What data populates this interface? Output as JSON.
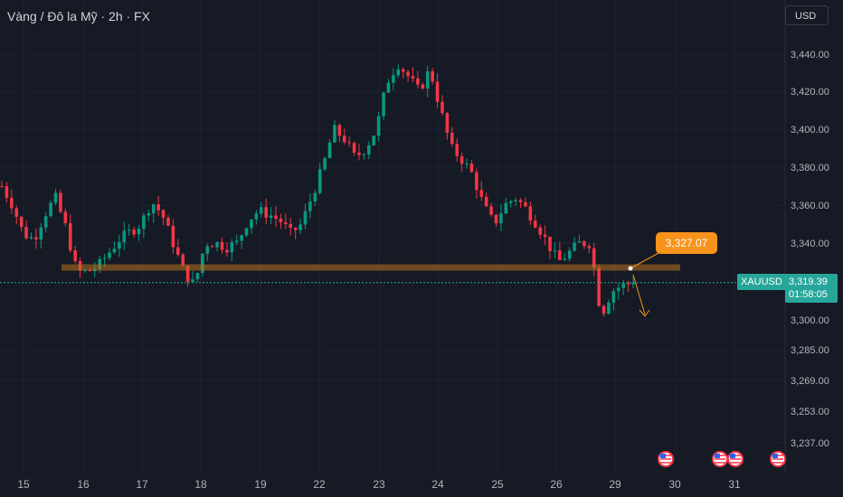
{
  "header": {
    "title": "Vàng / Đô la Mỹ · 2h · FX",
    "currency": "USD"
  },
  "ticker": {
    "symbol": "XAUUSD",
    "price": "3,319.39",
    "countdown": "01:58:05"
  },
  "annotation": {
    "price_label": "3,327.07",
    "level": 3327.07
  },
  "colors": {
    "background": "#161a25",
    "up": "#26a69a",
    "up_candle": "#089981",
    "down": "#f23645",
    "accent": "#f7931a",
    "level_band": "#b8731e"
  },
  "events": {
    "icon": "us-flag-icon",
    "positions": [
      "29",
      "31",
      "31",
      "31+"
    ]
  },
  "chart_data": {
    "type": "candlestick",
    "y_axis_labels": [
      "3,440.00",
      "3,420.00",
      "3,400.00",
      "3,380.00",
      "3,360.00",
      "3,340.00",
      "3,300.00",
      "3,285.00",
      "3,269.00",
      "3,253.00",
      "3,237.00"
    ],
    "x_axis_labels": [
      "15",
      "16",
      "17",
      "18",
      "19",
      "22",
      "23",
      "24",
      "25",
      "26",
      "29",
      "30",
      "31"
    ],
    "close_path": [
      3370,
      3360,
      3345,
      3342,
      3355,
      3364,
      3348,
      3325,
      3325,
      3328,
      3335,
      3342,
      3346,
      3350,
      3362,
      3355,
      3340,
      3325,
      3318,
      3340,
      3340,
      3338,
      3340,
      3352,
      3357,
      3355,
      3352,
      3345,
      3350,
      3365,
      3380,
      3400,
      3395,
      3385,
      3390,
      3400,
      3425,
      3435,
      3428,
      3420,
      3432,
      3410,
      3390,
      3384,
      3376,
      3360,
      3350,
      3360,
      3364,
      3358,
      3350,
      3340,
      3330,
      3335,
      3340,
      3340,
      3302,
      3315,
      3318,
      3319.39
    ],
    "support_level": 3327.07,
    "last_price": 3319.39
  }
}
